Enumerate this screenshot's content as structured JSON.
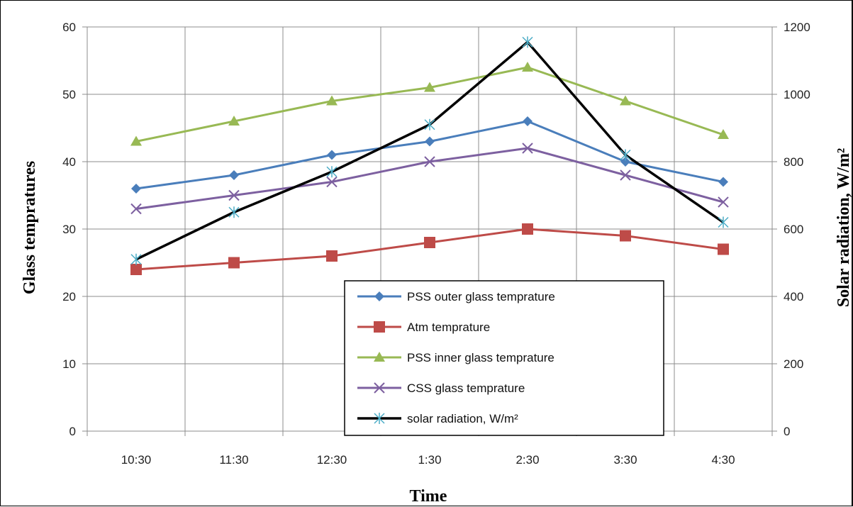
{
  "chart_data": {
    "type": "line",
    "categories": [
      "10:30",
      "11:30",
      "12:30",
      "1:30",
      "2:30",
      "3:30",
      "4:30"
    ],
    "xlabel": "Time",
    "ylabel_left": "Glass tempratures",
    "ylabel_right": "Solar radiation, W/m²",
    "ylim_left": [
      0,
      60
    ],
    "yticks_left": [
      "0",
      "10",
      "20",
      "30",
      "40",
      "50",
      "60"
    ],
    "ylim_right": [
      0,
      1200
    ],
    "yticks_right": [
      "0",
      "200",
      "400",
      "600",
      "800",
      "1000",
      "1200"
    ],
    "grid": true,
    "legend_position": "bottom-center",
    "series": [
      {
        "name": "PSS outer glass temprature",
        "axis": "left",
        "color": "#4a7ebb",
        "marker": "diamond",
        "values": [
          36,
          38,
          41,
          43,
          46,
          40,
          37
        ]
      },
      {
        "name": "Atm temprature",
        "axis": "left",
        "color": "#be4b48",
        "marker": "square",
        "values": [
          24,
          25,
          26,
          28,
          30,
          29,
          27
        ]
      },
      {
        "name": "PSS inner glass temprature",
        "axis": "left",
        "color": "#98b954",
        "marker": "triangle",
        "values": [
          43,
          46,
          49,
          51,
          54,
          49,
          44
        ]
      },
      {
        "name": "CSS glass temprature",
        "axis": "left",
        "color": "#7d60a0",
        "marker": "x",
        "values": [
          33,
          35,
          37,
          40,
          42,
          38,
          34
        ]
      },
      {
        "name": "solar radiation, W/m²",
        "axis": "right",
        "color": "#000000",
        "marker": "star",
        "marker_color": "#4bacc6",
        "values": [
          510,
          650,
          770,
          910,
          1155,
          820,
          620
        ]
      }
    ]
  }
}
